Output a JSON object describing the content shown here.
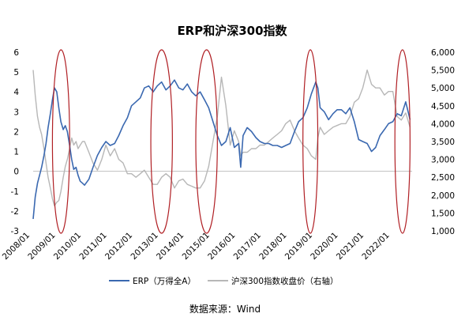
{
  "chart_data": {
    "type": "line",
    "title": "ERP和沪深300指数",
    "x_tick_labels": [
      "2008/01",
      "2009/01",
      "2010/01",
      "2011/01",
      "2012/01",
      "2013/01",
      "2014/01",
      "2015/01",
      "2016/01",
      "2017/01",
      "2018/01",
      "2019/01",
      "2020/01",
      "2021/01",
      "2022/01"
    ],
    "y_left": {
      "ticks": [
        "-3",
        "-2",
        "-1",
        "0",
        "1",
        "2",
        "3",
        "4",
        "5",
        "6"
      ],
      "ylim": [
        -3,
        6
      ]
    },
    "y_right": {
      "ticks": [
        "1,000",
        "1,500",
        "2,000",
        "2,500",
        "3,000",
        "3,500",
        "4,000",
        "4,500",
        "5,000",
        "5,500",
        "6,000"
      ],
      "ylim": [
        1000,
        6000
      ]
    },
    "series": [
      {
        "name": "ERP（万得全A）",
        "axis": "left",
        "color": "#3a68b0",
        "x": [
          2008.0,
          2008.08,
          2008.17,
          2008.25,
          2008.33,
          2008.42,
          2008.5,
          2008.58,
          2008.67,
          2008.75,
          2008.83,
          2008.92,
          2009.0,
          2009.08,
          2009.17,
          2009.25,
          2009.33,
          2009.42,
          2009.5,
          2009.58,
          2009.67,
          2009.75,
          2009.83,
          2009.92,
          2010.0,
          2010.17,
          2010.33,
          2010.5,
          2010.67,
          2010.83,
          2011.0,
          2011.17,
          2011.33,
          2011.5,
          2011.67,
          2011.83,
          2012.0,
          2012.17,
          2012.33,
          2012.5,
          2012.67,
          2012.83,
          2013.0,
          2013.17,
          2013.33,
          2013.5,
          2013.67,
          2013.83,
          2014.0,
          2014.17,
          2014.33,
          2014.5,
          2014.67,
          2014.83,
          2015.0,
          2015.17,
          2015.33,
          2015.5,
          2015.67,
          2015.83,
          2016.0,
          2016.08,
          2016.17,
          2016.33,
          2016.5,
          2016.67,
          2016.83,
          2017.0,
          2017.17,
          2017.33,
          2017.5,
          2017.67,
          2017.83,
          2018.0,
          2018.17,
          2018.33,
          2018.5,
          2018.67,
          2018.83,
          2019.0,
          2019.08,
          2019.17,
          2019.33,
          2019.5,
          2019.67,
          2019.83,
          2020.0,
          2020.17,
          2020.33,
          2020.5,
          2020.67,
          2020.83,
          2021.0,
          2021.17,
          2021.33,
          2021.5,
          2021.67,
          2021.83,
          2022.0,
          2022.17,
          2022.33,
          2022.5,
          2022.67
        ],
        "values": [
          -2.4,
          -1.3,
          -0.6,
          -0.2,
          0.2,
          0.8,
          1.4,
          2.2,
          2.9,
          3.6,
          4.2,
          4.0,
          3.2,
          2.5,
          2.1,
          2.3,
          2.0,
          1.3,
          0.6,
          0.1,
          0.2,
          -0.2,
          -0.5,
          -0.6,
          -0.7,
          -0.4,
          0.2,
          0.8,
          1.2,
          1.5,
          1.3,
          1.4,
          1.8,
          2.3,
          2.7,
          3.3,
          3.5,
          3.7,
          4.2,
          4.3,
          4.0,
          4.3,
          4.5,
          4.1,
          4.3,
          4.6,
          4.2,
          4.1,
          4.4,
          4.0,
          3.8,
          4.0,
          3.6,
          3.2,
          2.5,
          1.8,
          1.3,
          1.5,
          2.2,
          1.2,
          1.4,
          0.2,
          1.8,
          2.2,
          2.0,
          1.7,
          1.5,
          1.4,
          1.4,
          1.3,
          1.3,
          1.2,
          1.3,
          1.4,
          2.0,
          2.5,
          2.7,
          3.2,
          3.9,
          4.5,
          4.2,
          3.2,
          3.0,
          2.6,
          2.9,
          3.1,
          3.1,
          2.9,
          3.2,
          2.5,
          1.6,
          1.5,
          1.4,
          1.0,
          1.2,
          1.8,
          2.1,
          2.4,
          2.5,
          2.9,
          2.8,
          3.5,
          2.6
        ]
      },
      {
        "name": "沪深300指数收盘价（右轴）",
        "axis": "right",
        "color": "#b7b7b7",
        "x": [
          2008.0,
          2008.08,
          2008.17,
          2008.25,
          2008.33,
          2008.42,
          2008.5,
          2008.58,
          2008.67,
          2008.75,
          2008.83,
          2008.92,
          2009.0,
          2009.08,
          2009.17,
          2009.25,
          2009.33,
          2009.42,
          2009.5,
          2009.58,
          2009.67,
          2009.75,
          2009.83,
          2009.92,
          2010.0,
          2010.17,
          2010.33,
          2010.5,
          2010.67,
          2010.83,
          2011.0,
          2011.17,
          2011.33,
          2011.5,
          2011.67,
          2011.83,
          2012.0,
          2012.17,
          2012.33,
          2012.5,
          2012.67,
          2012.83,
          2013.0,
          2013.17,
          2013.33,
          2013.5,
          2013.67,
          2013.83,
          2014.0,
          2014.17,
          2014.33,
          2014.5,
          2014.67,
          2014.83,
          2015.0,
          2015.17,
          2015.33,
          2015.5,
          2015.67,
          2015.83,
          2016.0,
          2016.08,
          2016.17,
          2016.33,
          2016.5,
          2016.67,
          2016.83,
          2017.0,
          2017.17,
          2017.33,
          2017.5,
          2017.67,
          2017.83,
          2018.0,
          2018.17,
          2018.33,
          2018.5,
          2018.67,
          2018.83,
          2019.0,
          2019.08,
          2019.17,
          2019.33,
          2019.5,
          2019.67,
          2019.83,
          2020.0,
          2020.17,
          2020.33,
          2020.5,
          2020.67,
          2020.83,
          2021.0,
          2021.17,
          2021.33,
          2021.5,
          2021.67,
          2021.83,
          2022.0,
          2022.17,
          2022.33,
          2022.5,
          2022.67
        ],
        "values": [
          5500,
          4800,
          4200,
          3900,
          3700,
          3300,
          2900,
          2500,
          2200,
          1900,
          1700,
          1800,
          1850,
          2100,
          2500,
          2800,
          3000,
          3300,
          3600,
          3400,
          3500,
          3300,
          3400,
          3500,
          3500,
          3200,
          2900,
          2700,
          3000,
          3400,
          3100,
          3300,
          3000,
          2900,
          2600,
          2600,
          2500,
          2600,
          2700,
          2500,
          2300,
          2300,
          2500,
          2600,
          2500,
          2200,
          2400,
          2450,
          2300,
          2250,
          2200,
          2200,
          2400,
          2800,
          3500,
          4200,
          5300,
          4500,
          3400,
          3800,
          3500,
          3100,
          3200,
          3200,
          3300,
          3300,
          3400,
          3400,
          3500,
          3600,
          3700,
          3800,
          4000,
          4100,
          3800,
          3600,
          3400,
          3300,
          3100,
          3000,
          3600,
          3900,
          3700,
          3800,
          3900,
          3950,
          4000,
          4000,
          4200,
          4600,
          4700,
          5000,
          5500,
          5100,
          5000,
          5000,
          4800,
          4900,
          4900,
          4200,
          4100,
          4300,
          3900
        ]
      }
    ],
    "highlight_periods": [
      [
        2008.75,
        2009.42
      ],
      [
        2012.58,
        2013.42
      ],
      [
        2014.33,
        2015.17
      ],
      [
        2018.5,
        2019.08
      ],
      [
        2022.08,
        2022.67
      ]
    ],
    "legend_position": "bottom",
    "grid": false
  },
  "source_note": "数据来源：Wind"
}
